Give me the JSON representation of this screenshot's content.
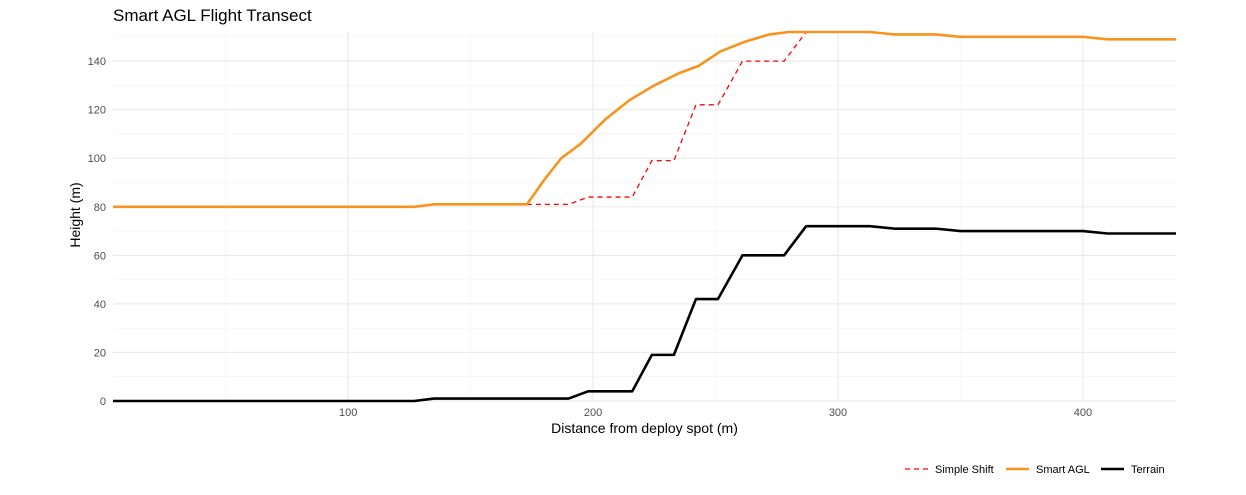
{
  "chart_data": {
    "type": "line",
    "title": "Smart AGL Flight Transect",
    "xlabel": "Distance from deploy spot (m)",
    "ylabel": "Height (m)",
    "xlim": [
      4,
      438
    ],
    "ylim": [
      0,
      152
    ],
    "x_ticks": [
      100,
      200,
      300,
      400
    ],
    "y_ticks": [
      0,
      20,
      40,
      60,
      80,
      100,
      120,
      140
    ],
    "grid": true,
    "legend_position": "bottom-right",
    "series": [
      {
        "name": "Simple Shift",
        "color": "#ff0000",
        "style": "dashed",
        "x": [
          4,
          127,
          135,
          173,
          190,
          198,
          216,
          224,
          233,
          242,
          251,
          261,
          278,
          287,
          313,
          323,
          340,
          350,
          400,
          410,
          438
        ],
        "y": [
          80,
          80,
          81,
          81,
          81,
          84,
          84,
          99,
          99,
          122,
          122,
          140,
          140,
          152,
          152,
          151,
          151,
          150,
          150,
          149,
          149
        ]
      },
      {
        "name": "Smart AGL",
        "color": "#f7941d",
        "style": "solid",
        "x": [
          4,
          127,
          135,
          173,
          180,
          187,
          195,
          205,
          215,
          225,
          235,
          243,
          252,
          262,
          272,
          280,
          287,
          313,
          323,
          340,
          350,
          400,
          410,
          438
        ],
        "y": [
          80,
          80,
          81,
          81,
          91,
          100,
          106,
          116,
          124,
          130,
          135,
          138,
          144,
          148,
          151,
          152,
          152,
          152,
          151,
          151,
          150,
          150,
          149,
          149
        ]
      },
      {
        "name": "Terrain",
        "color": "#000000",
        "style": "solid",
        "x": [
          4,
          127,
          135,
          173,
          190,
          198,
          216,
          224,
          233,
          242,
          251,
          261,
          278,
          287,
          313,
          323,
          340,
          350,
          400,
          410,
          438
        ],
        "y": [
          0,
          0,
          1,
          1,
          1,
          4,
          4,
          19,
          19,
          42,
          42,
          60,
          60,
          72,
          72,
          71,
          71,
          70,
          70,
          69,
          69
        ]
      }
    ]
  }
}
